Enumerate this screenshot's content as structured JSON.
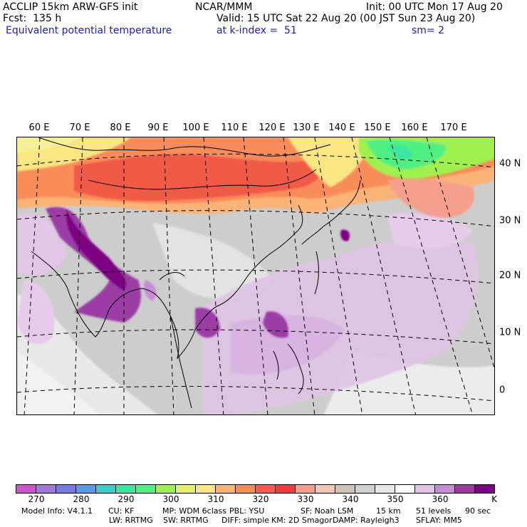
{
  "header": {
    "model": "ACCLIP 15km ARW-GFS init",
    "org": "NCAR/MMM",
    "init": "Init: 00 UTC Mon 17 Aug 20",
    "fcst": "Fcst:  135 h",
    "valid": "Valid: 15 UTC Sat 22 Aug 20 (00 JST Sun 23 Aug 20)",
    "field": "Equivalent potential temperature",
    "level": "at k-index =  51",
    "smooth": "sm= 2"
  },
  "map": {
    "lon_labels": [
      "60 E",
      "70 E",
      "80 E",
      "90 E",
      "100 E",
      "110 E",
      "120 E",
      "130 E",
      "140 E",
      "150 E",
      "160 E",
      "170 E"
    ],
    "lat_labels": [
      "40 N",
      "30 N",
      "20 N",
      "10 N",
      "0"
    ],
    "regions": [
      "warm-north-band",
      "pale-green-northeast",
      "purple-south-asia",
      "lavender-ocean",
      "grey-land-tibet"
    ]
  },
  "colorbar": {
    "colors": [
      "#cc55cc",
      "#a07ad8",
      "#7a7ae6",
      "#5a9ae6",
      "#3ccdc8",
      "#3ce6a0",
      "#50f082",
      "#a0f050",
      "#e6f064",
      "#fae682",
      "#fab478",
      "#fa8c5a",
      "#fa5a50",
      "#f03c3c",
      "#f5a08c",
      "#f0c8b4",
      "#d2c3b9",
      "#d2d2d2",
      "#e8e8e8",
      "#ffffff",
      "#e0c3e6",
      "#c88cd2",
      "#9b3ca5",
      "#7d0082"
    ],
    "labels": [
      "270",
      "280",
      "290",
      "300",
      "310",
      "320",
      "330",
      "340",
      "350",
      "360"
    ],
    "unit": "K"
  },
  "footer": {
    "line1": [
      "Model Info: V4.1.1",
      "CU: KF",
      "MP: WDM 6class",
      "PBL: YSU",
      "SF: Noah LSM",
      "15 km",
      "51 levels",
      "90 sec"
    ],
    "line2": [
      "LW: RRTMG",
      "SW: RRTMG",
      "DIFF: simple",
      "KM: 2D Smagor",
      "DAMP: Rayleigh3",
      "SFLAY: MM5"
    ]
  }
}
